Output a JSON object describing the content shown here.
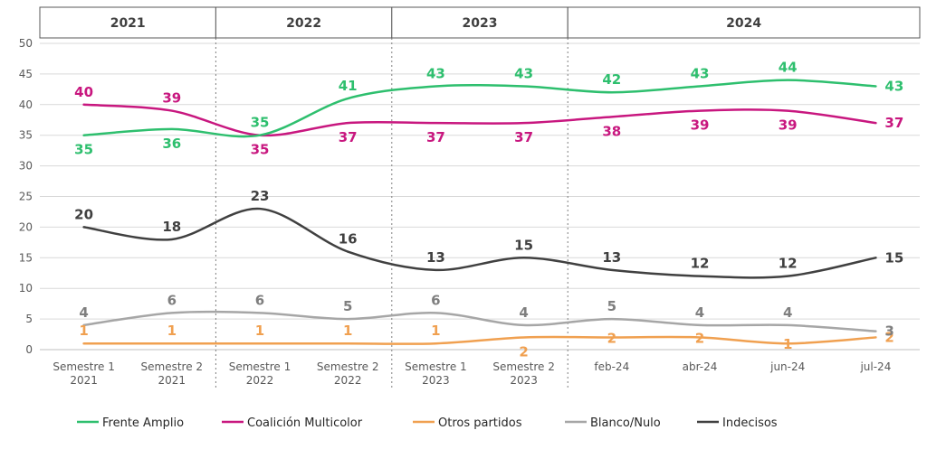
{
  "chart_data": {
    "type": "line",
    "ylim": [
      0,
      50
    ],
    "yticks": [
      "0",
      "5",
      "10",
      "15",
      "20",
      "25",
      "30",
      "35",
      "40",
      "45",
      "50"
    ],
    "grid": true,
    "legend_position": "bottom",
    "year_groups": [
      {
        "label": "2021",
        "span": 2
      },
      {
        "label": "2022",
        "span": 2
      },
      {
        "label": "2023",
        "span": 2
      },
      {
        "label": "2024",
        "span": 4
      }
    ],
    "categories": [
      [
        "Semestre 1",
        "2021"
      ],
      [
        "Semestre 2",
        "2021"
      ],
      [
        "Semestre 1",
        "2022"
      ],
      [
        "Semestre 2",
        "2022"
      ],
      [
        "Semestre 1",
        "2023"
      ],
      [
        "Semestre 2",
        "2023"
      ],
      [
        "feb-24"
      ],
      [
        "abr-24"
      ],
      [
        "jun-24"
      ],
      [
        "jul-24"
      ]
    ],
    "series": [
      {
        "name": "Frente Amplio",
        "color": "#2ebf6e",
        "values": [
          35,
          36,
          35,
          41,
          43,
          43,
          42,
          43,
          44,
          43
        ],
        "label_pos": [
          "below",
          "below",
          "above",
          "above",
          "above",
          "above",
          "above",
          "above",
          "above",
          "right"
        ]
      },
      {
        "name": "Coalición Multicolor",
        "color": "#c8177f",
        "values": [
          40,
          39,
          35,
          37,
          37,
          37,
          38,
          39,
          39,
          37
        ],
        "label_pos": [
          "above",
          "above",
          "below",
          "below",
          "below",
          "below",
          "below",
          "below",
          "below",
          "right"
        ]
      },
      {
        "name": "Otros partidos",
        "color": "#f0a050",
        "values": [
          1,
          1,
          1,
          1,
          1,
          2,
          2,
          2,
          1,
          2
        ],
        "label_pos": [
          "above",
          "above",
          "above",
          "above",
          "above",
          "below",
          "center",
          "center",
          "center",
          "right"
        ]
      },
      {
        "name": "Blanco/Nulo",
        "color": "#a6a6a6",
        "values": [
          4,
          6,
          6,
          5,
          6,
          4,
          5,
          4,
          4,
          3
        ],
        "label_pos": [
          "above",
          "above",
          "above",
          "above",
          "above",
          "above",
          "above",
          "above",
          "above",
          "right"
        ]
      },
      {
        "name": "Indecisos",
        "color": "#404040",
        "values": [
          20,
          18,
          23,
          16,
          13,
          15,
          13,
          12,
          12,
          15
        ],
        "label_pos": [
          "above",
          "above",
          "above",
          "above",
          "above",
          "above",
          "above",
          "above",
          "above",
          "right"
        ]
      }
    ]
  }
}
